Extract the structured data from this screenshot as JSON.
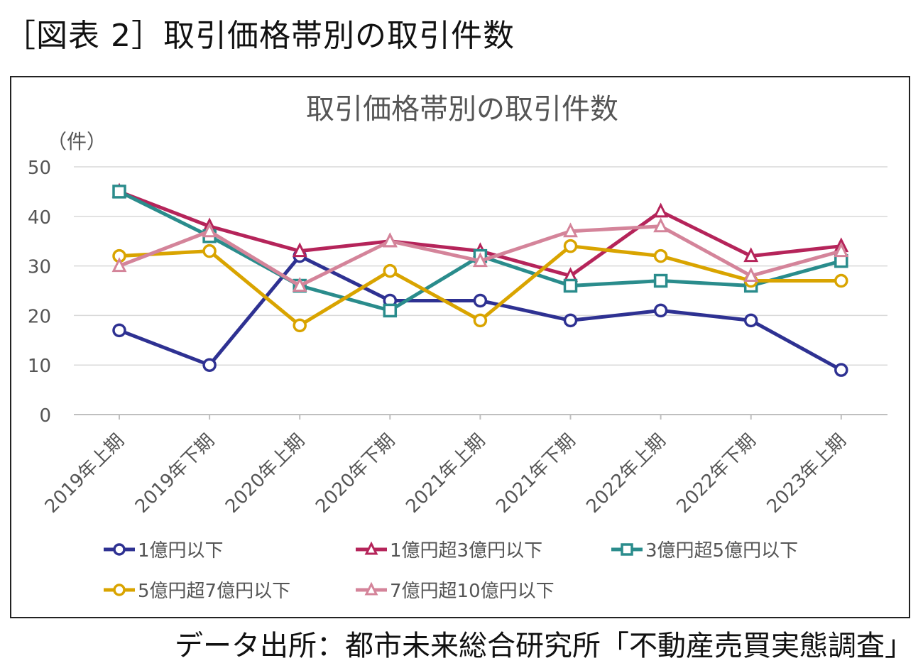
{
  "figure_caption": "［図表 2］取引価格帯別の取引件数",
  "source_note": "データ出所：都市未来総合研究所「不動産売買実態調査」",
  "chart_data": {
    "type": "line",
    "title": "取引価格帯別の取引件数",
    "unit_label": "（件）",
    "xlabel": "",
    "ylabel": "",
    "ylim": [
      0,
      50
    ],
    "yticks": [
      0,
      10,
      20,
      30,
      40,
      50
    ],
    "grid": true,
    "legend_position": "bottom",
    "categories": [
      "2019年上期",
      "2019年下期",
      "2020年上期",
      "2020年下期",
      "2021年上期",
      "2021年下期",
      "2022年上期",
      "2022年下期",
      "2023年上期"
    ],
    "series": [
      {
        "name": "1億円以下",
        "color": "#2E3192",
        "marker": "circle",
        "values": [
          17,
          10,
          32,
          23,
          23,
          19,
          21,
          19,
          9
        ]
      },
      {
        "name": "1億円超3億円以下",
        "color": "#B5245A",
        "marker": "triangle",
        "values": [
          45,
          38,
          33,
          35,
          33,
          28,
          41,
          32,
          34
        ]
      },
      {
        "name": "3億円超5億円以下",
        "color": "#2A8C8C",
        "marker": "square",
        "values": [
          45,
          36,
          26,
          21,
          32,
          26,
          27,
          26,
          31
        ]
      },
      {
        "name": "5億円超7億円以下",
        "color": "#D9A400",
        "marker": "circle",
        "values": [
          32,
          33,
          18,
          29,
          19,
          34,
          32,
          27,
          27
        ]
      },
      {
        "name": "7億円超10億円以下",
        "color": "#D4849A",
        "marker": "triangle",
        "values": [
          30,
          37,
          26,
          35,
          31,
          37,
          38,
          28,
          33
        ]
      }
    ]
  }
}
